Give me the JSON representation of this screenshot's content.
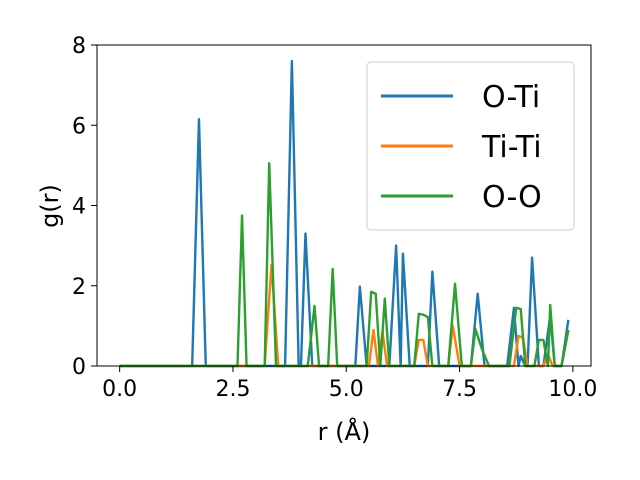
{
  "chart_data": {
    "type": "line",
    "title": "",
    "xlabel": "r (Å)",
    "ylabel": "g(r)",
    "xlim": [
      -0.5,
      10.4
    ],
    "ylim": [
      0,
      8
    ],
    "xticks": [
      0.0,
      2.5,
      5.0,
      7.5,
      10.0
    ],
    "xtick_labels": [
      "0.0",
      "2.5",
      "5.0",
      "7.5",
      "10.0"
    ],
    "yticks": [
      0,
      2,
      4,
      6,
      8
    ],
    "ytick_labels": [
      "0",
      "2",
      "4",
      "6",
      "8"
    ],
    "grid": false,
    "legend_position": "top-right",
    "series": [
      {
        "name": "O-Ti",
        "color": "#1f77b4",
        "points": [
          [
            0,
            0
          ],
          [
            1.6,
            0
          ],
          [
            1.75,
            6.15
          ],
          [
            1.9,
            0
          ],
          [
            3.65,
            0
          ],
          [
            3.8,
            7.6
          ],
          [
            3.95,
            0
          ],
          [
            4.0,
            0
          ],
          [
            4.1,
            3.3
          ],
          [
            4.25,
            0
          ],
          [
            5.2,
            0
          ],
          [
            5.3,
            1.98
          ],
          [
            5.45,
            0
          ],
          [
            5.95,
            0
          ],
          [
            6.1,
            3.0
          ],
          [
            6.2,
            0
          ],
          [
            6.25,
            2.8
          ],
          [
            6.4,
            0
          ],
          [
            6.8,
            0
          ],
          [
            6.9,
            2.35
          ],
          [
            7.05,
            0
          ],
          [
            7.75,
            0
          ],
          [
            7.9,
            1.8
          ],
          [
            8.05,
            0
          ],
          [
            8.55,
            0
          ],
          [
            8.7,
            1.45
          ],
          [
            8.8,
            0
          ],
          [
            8.85,
            0.25
          ],
          [
            8.95,
            0
          ],
          [
            9.0,
            0
          ],
          [
            9.1,
            2.7
          ],
          [
            9.25,
            0
          ],
          [
            9.35,
            0
          ],
          [
            9.5,
            1.25
          ],
          [
            9.6,
            0
          ],
          [
            9.75,
            0
          ],
          [
            9.9,
            1.15
          ]
        ]
      },
      {
        "name": "Ti-Ti",
        "color": "#ff7f0e",
        "points": [
          [
            0,
            0
          ],
          [
            3.2,
            0
          ],
          [
            3.35,
            2.52
          ],
          [
            3.5,
            0
          ],
          [
            5.5,
            0
          ],
          [
            5.6,
            0.9
          ],
          [
            5.7,
            0
          ],
          [
            5.8,
            0.85
          ],
          [
            5.9,
            0
          ],
          [
            6.5,
            0
          ],
          [
            6.6,
            0.65
          ],
          [
            6.7,
            0.65
          ],
          [
            6.8,
            0
          ],
          [
            7.25,
            0
          ],
          [
            7.35,
            1.0
          ],
          [
            7.5,
            0
          ],
          [
            8.7,
            0
          ],
          [
            8.8,
            0.75
          ],
          [
            8.9,
            0.7
          ],
          [
            9.0,
            0
          ],
          [
            9.35,
            0
          ],
          [
            9.45,
            0.3
          ],
          [
            9.55,
            0
          ],
          [
            9.75,
            0
          ],
          [
            9.9,
            0.9
          ]
        ]
      },
      {
        "name": "O-O",
        "color": "#2ca02c",
        "points": [
          [
            0,
            0
          ],
          [
            2.6,
            0
          ],
          [
            2.7,
            3.75
          ],
          [
            2.8,
            0
          ],
          [
            3.2,
            0
          ],
          [
            3.3,
            5.05
          ],
          [
            3.45,
            0
          ],
          [
            4.15,
            0
          ],
          [
            4.3,
            1.5
          ],
          [
            4.4,
            0
          ],
          [
            4.6,
            0
          ],
          [
            4.7,
            2.42
          ],
          [
            4.8,
            0
          ],
          [
            5.45,
            0
          ],
          [
            5.55,
            1.85
          ],
          [
            5.65,
            1.8
          ],
          [
            5.75,
            0
          ],
          [
            5.85,
            1.68
          ],
          [
            5.95,
            0
          ],
          [
            6.5,
            0
          ],
          [
            6.6,
            1.3
          ],
          [
            6.7,
            1.28
          ],
          [
            6.8,
            1.22
          ],
          [
            6.9,
            0
          ],
          [
            7.25,
            0
          ],
          [
            7.4,
            2.05
          ],
          [
            7.55,
            0
          ],
          [
            7.75,
            0
          ],
          [
            7.85,
            0.92
          ],
          [
            8.0,
            0.4
          ],
          [
            8.15,
            0
          ],
          [
            8.6,
            0
          ],
          [
            8.75,
            1.45
          ],
          [
            8.85,
            1.42
          ],
          [
            8.95,
            0
          ],
          [
            9.15,
            0
          ],
          [
            9.25,
            0.65
          ],
          [
            9.35,
            0.65
          ],
          [
            9.45,
            0
          ],
          [
            9.5,
            1.52
          ],
          [
            9.6,
            0
          ],
          [
            9.75,
            0
          ],
          [
            9.9,
            0.9
          ]
        ]
      }
    ]
  }
}
